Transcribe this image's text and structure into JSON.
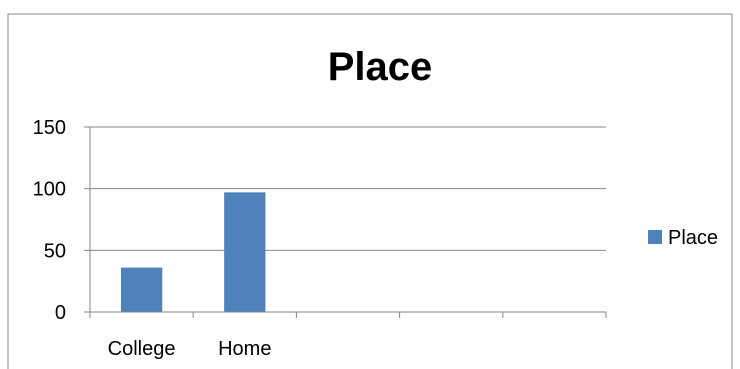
{
  "chart_data": {
    "type": "bar",
    "title": "Place",
    "xlabel": "",
    "ylabel": "",
    "categories": [
      "College",
      "Home",
      "",
      "",
      ""
    ],
    "series": [
      {
        "name": "Place",
        "values": [
          36,
          97,
          null,
          null,
          null
        ],
        "color": "#4f81bd"
      }
    ],
    "ylim": [
      0,
      150
    ],
    "yticks": [
      0,
      50,
      100,
      150
    ],
    "grid": true,
    "legend_position": "right"
  }
}
